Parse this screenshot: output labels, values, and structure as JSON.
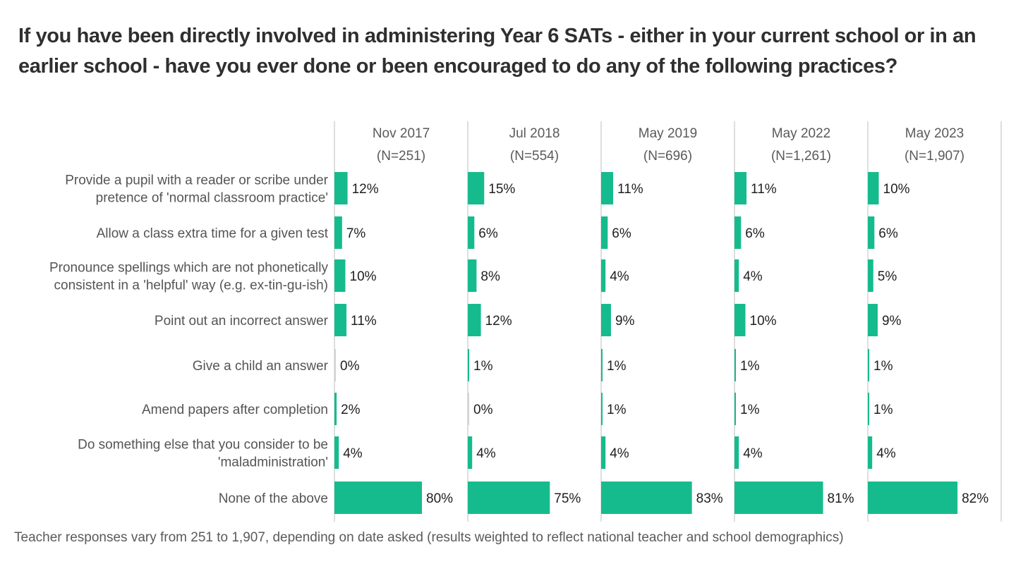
{
  "chart_data": {
    "type": "bar",
    "orientation": "horizontal",
    "layout": "small-multiples",
    "title": "If you have been directly involved in administering Year 6 SATs - either in your current school or in an earlier school - have you ever done or been encouraged to do any of the following practices?",
    "categories": [
      "Provide a pupil with a reader or scribe under pretence of 'normal classroom practice'",
      "Allow a class extra time for a given test",
      "Pronounce spellings which are not phonetically consistent in a 'helpful' way (e.g. ex-tin-gu-ish)",
      "Point out an incorrect answer",
      "Give a child an answer",
      "Amend papers after completion",
      "Do something else that you consider to be 'maladministration'",
      "None of the above"
    ],
    "category_lines": [
      [
        "Provide a pupil with a reader or scribe under",
        "pretence of 'normal classroom practice'"
      ],
      [
        "Allow a class extra time for a given test"
      ],
      [
        "Pronounce spellings which are not phonetically",
        "consistent in a 'helpful' way (e.g. ex-tin-gu-ish)"
      ],
      [
        "Point out an incorrect answer"
      ],
      [
        "Give a child an answer"
      ],
      [
        "Amend papers after completion"
      ],
      [
        "Do something else that you consider to be",
        "'maladministration'"
      ],
      [
        "None of the above"
      ]
    ],
    "series": [
      {
        "name": "Nov 2017",
        "n_label": "(N=251)",
        "values": [
          12,
          7,
          10,
          11,
          0,
          2,
          4,
          80
        ]
      },
      {
        "name": "Jul 2018",
        "n_label": "(N=554)",
        "values": [
          15,
          6,
          8,
          12,
          1,
          0,
          4,
          75
        ]
      },
      {
        "name": "May 2019",
        "n_label": "(N=696)",
        "values": [
          11,
          6,
          4,
          9,
          1,
          1,
          4,
          83
        ]
      },
      {
        "name": "May 2022",
        "n_label": "(N=1,261)",
        "values": [
          11,
          6,
          4,
          10,
          1,
          1,
          4,
          81
        ]
      },
      {
        "name": "May 2023",
        "n_label": "(N=1,907)",
        "values": [
          10,
          6,
          5,
          9,
          1,
          1,
          4,
          82
        ]
      }
    ],
    "value_suffix": "%",
    "xlim": [
      0,
      100
    ],
    "grid": false,
    "legend": "none",
    "bar_color": "#16bb8d",
    "zero_bar_color": "#d3d3d3",
    "footnote": "Teacher responses vary from 251 to 1,907, depending on date asked (results weighted to reflect national teacher and school demographics)"
  }
}
